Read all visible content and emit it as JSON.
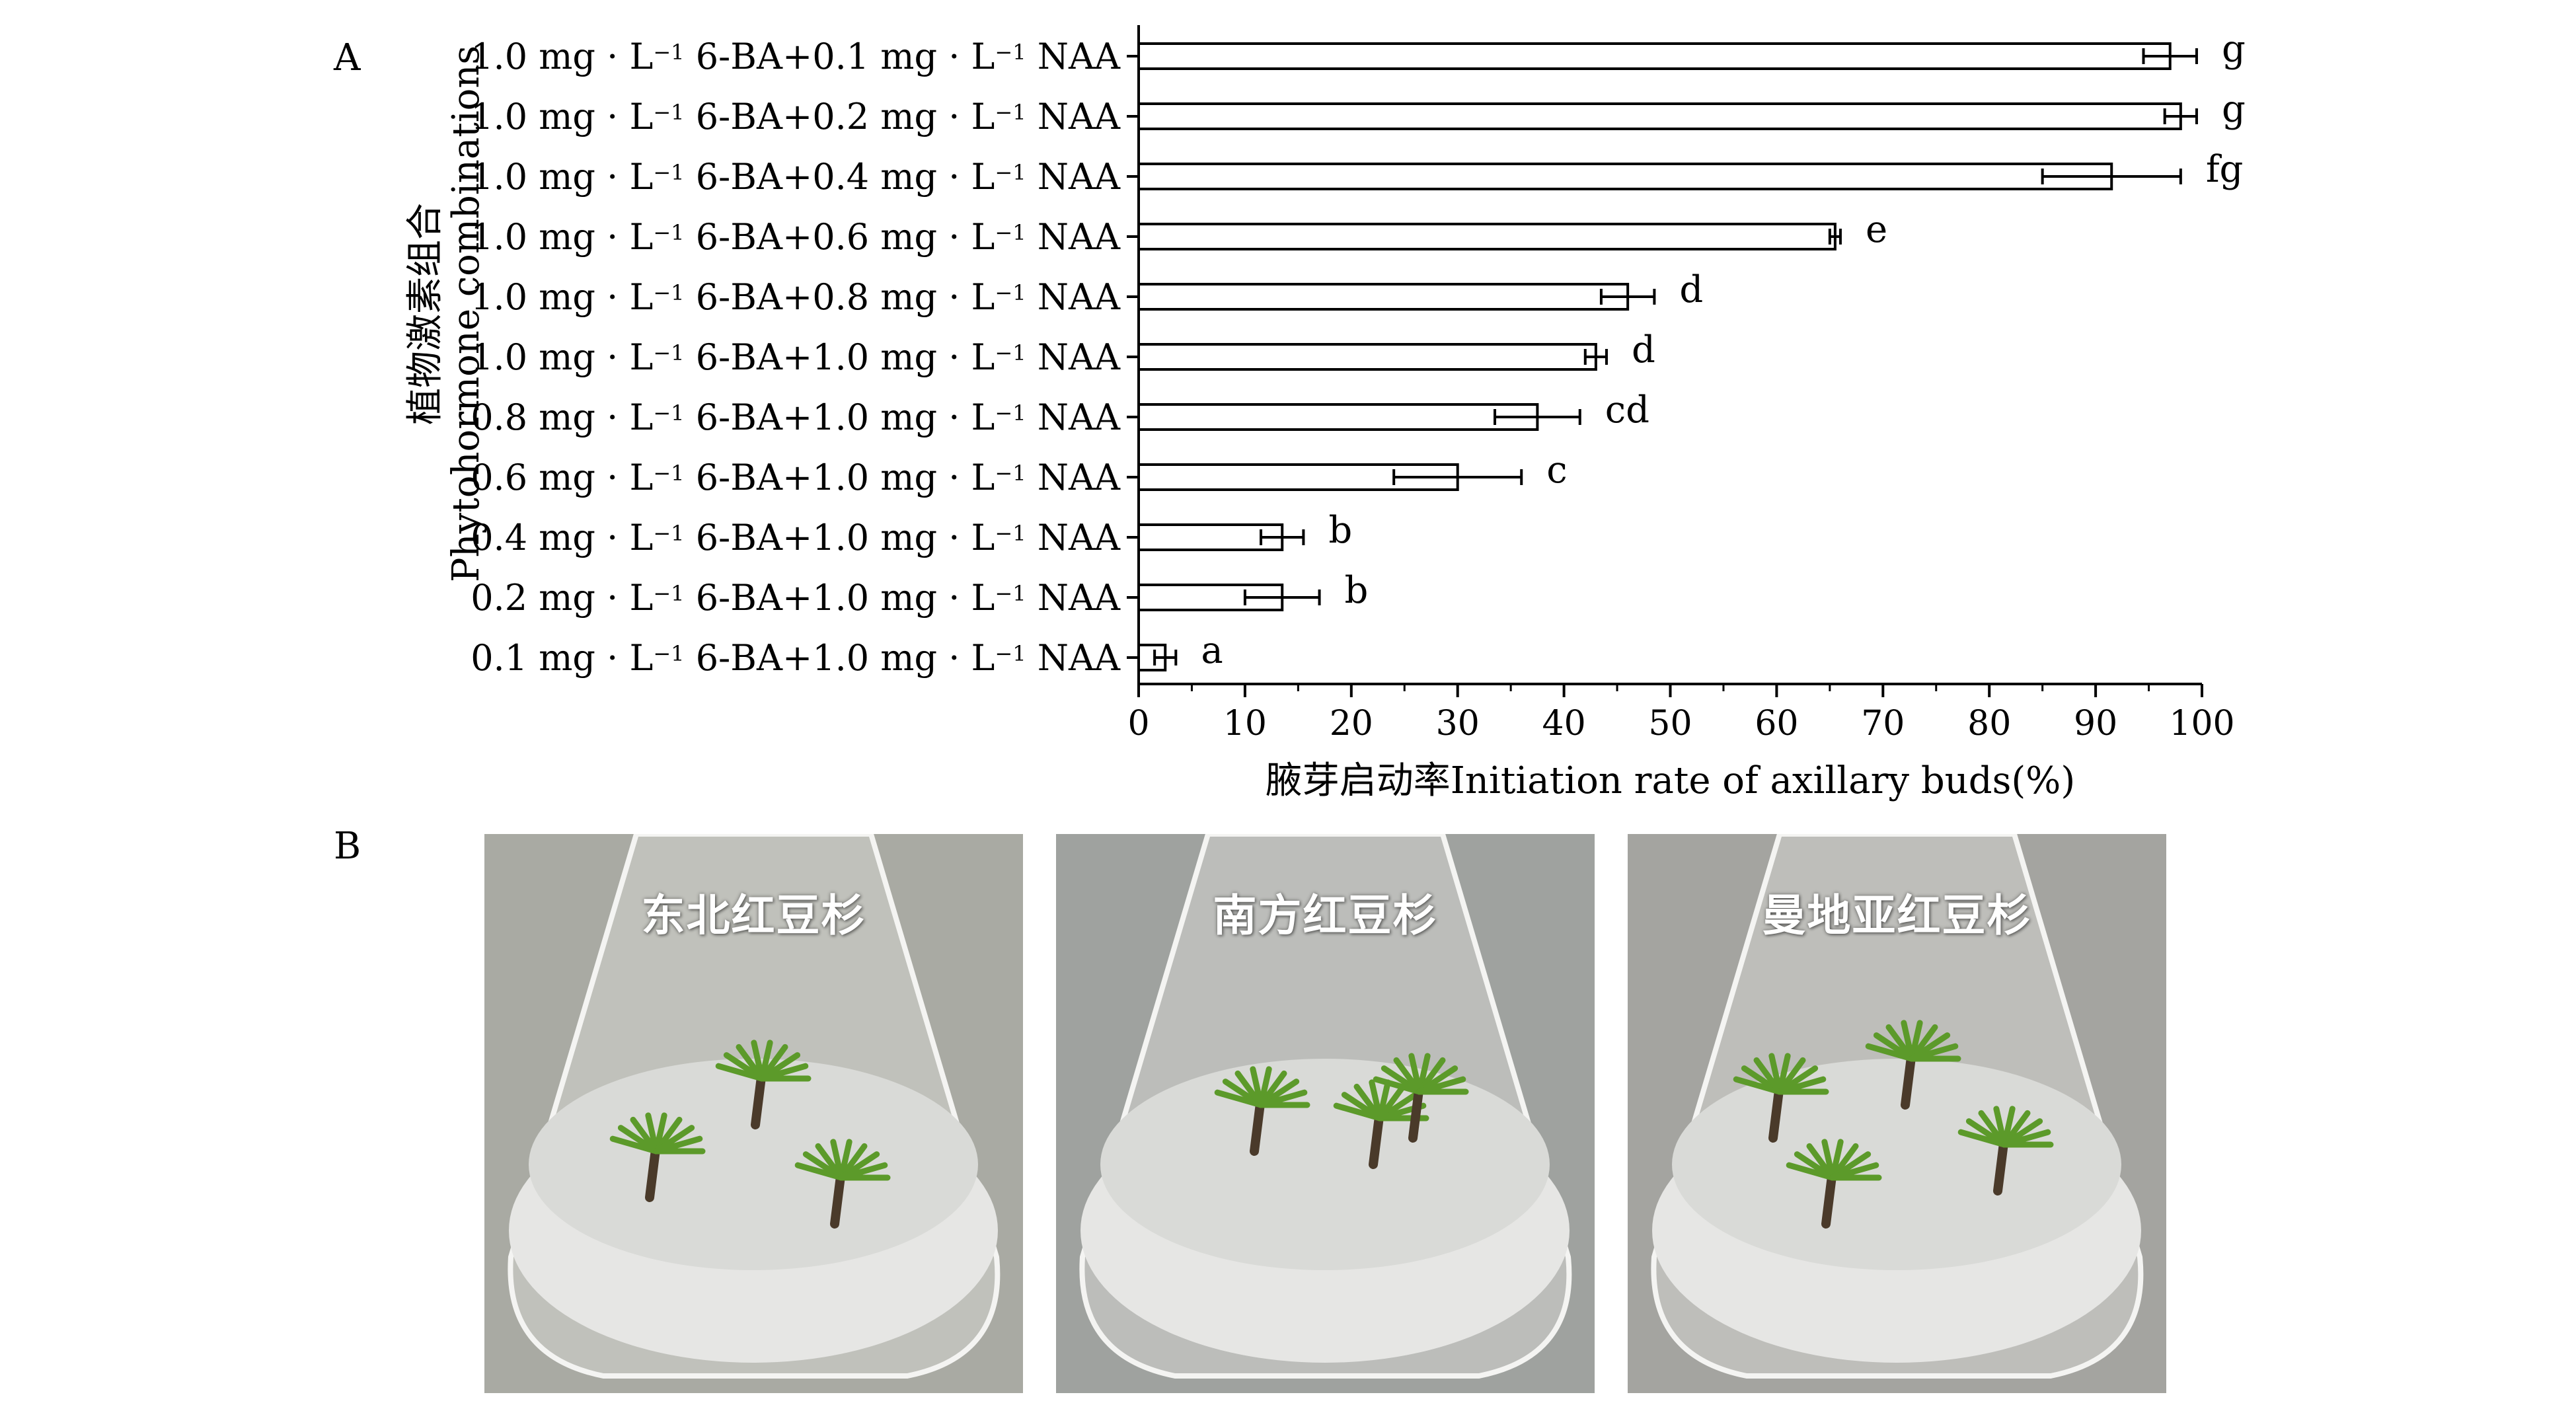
{
  "panels": {
    "a": "A",
    "b": "B"
  },
  "chart_data": {
    "type": "bar",
    "orientation": "horizontal",
    "categories": [
      {
        "a": "1.0",
        "b": "0.1"
      },
      {
        "a": "1.0",
        "b": "0.2"
      },
      {
        "a": "1.0",
        "b": "0.4"
      },
      {
        "a": "1.0",
        "b": "0.6"
      },
      {
        "a": "1.0",
        "b": "0.8"
      },
      {
        "a": "1.0",
        "b": "1.0"
      },
      {
        "a": "0.8",
        "b": "1.0"
      },
      {
        "a": "0.6",
        "b": "1.0"
      },
      {
        "a": "0.4",
        "b": "1.0"
      },
      {
        "a": "0.2",
        "b": "1.0"
      },
      {
        "a": "0.1",
        "b": "1.0"
      }
    ],
    "label_parts": {
      "unit": "mg",
      "dot": "·",
      "l": "L",
      "exp": "−1",
      "ba": " 6-BA+",
      "naa": " NAA"
    },
    "values": [
      97,
      98,
      91.5,
      65.5,
      46,
      43,
      37.5,
      30,
      13.5,
      13.5,
      2.5
    ],
    "errors": [
      2.5,
      1.5,
      6.5,
      0.5,
      2.5,
      1,
      4,
      6,
      2,
      3.5,
      1
    ],
    "significance": [
      "g",
      "g",
      "fg",
      "e",
      "d",
      "d",
      "cd",
      "c",
      "b",
      "b",
      "a"
    ],
    "xlim": [
      0,
      100
    ],
    "xticks": [
      0,
      10,
      20,
      30,
      40,
      50,
      60,
      70,
      80,
      90,
      100
    ],
    "xlabel": "腋芽启动率Initiation rate of axillary buds(%)",
    "ylabel": [
      "植物激素组合",
      "Phytohormone combinations"
    ]
  },
  "photos": [
    {
      "caption": "东北红豆杉",
      "bg": "#a9aaa3"
    },
    {
      "caption": "南方红豆杉",
      "bg": "#9fa29f"
    },
    {
      "caption": "曼地亚红豆杉",
      "bg": "#a4a4a0"
    }
  ],
  "colors": {
    "bar_fill": "#ffffff",
    "stroke": "#000000",
    "plantlet": "#5c9a2a",
    "medium": "#e6e6e4"
  }
}
